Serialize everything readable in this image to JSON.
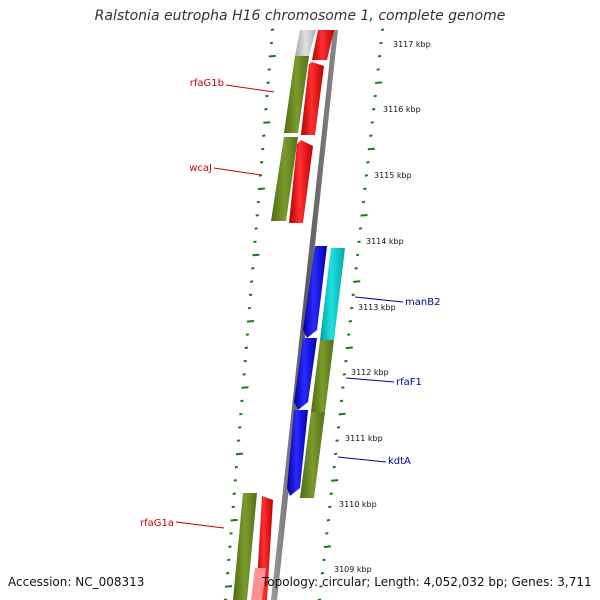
{
  "title": "Ralstonia eutropha H16 chromosome 1, complete genome",
  "footer": {
    "accession": "Accession: NC_008313",
    "summary": "Topology: circular; Length: 4,052,032 bp; Genes: 3,711"
  },
  "map": {
    "kbp_labels": [
      "3117 kbp",
      "3116 kbp",
      "3115 kbp",
      "3114 kbp",
      "3113 kbp",
      "3112 kbp",
      "3111 kbp",
      "3110 kbp",
      "3109 kbp"
    ],
    "genes": [
      {
        "name": "rfaG1b",
        "strand": "reverse"
      },
      {
        "name": "wcaJ",
        "strand": "reverse"
      },
      {
        "name": "manB2",
        "strand": "forward"
      },
      {
        "name": "rfaF1",
        "strand": "forward"
      },
      {
        "name": "kdtA",
        "strand": "forward"
      },
      {
        "name": "rfaG1a",
        "strand": "reverse"
      }
    ],
    "colors": {
      "backbone": "#8a8a8a",
      "cds_red": "#ff0000",
      "cds_blue": "#0000ff",
      "cds_cyan": "#00cccc",
      "cog_olive": "#6b8e23",
      "cog_gray": "#c0c0c0",
      "ticks": "#1a7a1a",
      "reverse_label": "#cc0000",
      "forward_label": "#000099"
    }
  }
}
